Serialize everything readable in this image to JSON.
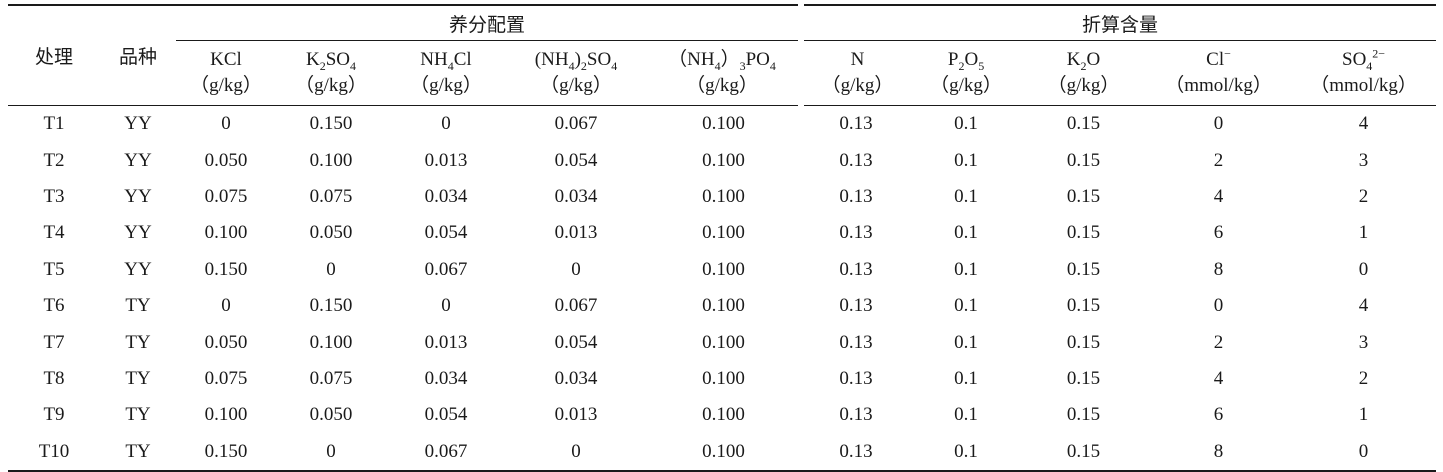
{
  "headers": {
    "treatment": "处理",
    "variety": "品种",
    "group_nutrient": "养分配置",
    "group_content": "折算含量"
  },
  "columns": {
    "kcl": {
      "main": "KCl",
      "unit": "（g/kg）"
    },
    "k2so4": {
      "pre": "K",
      "sub": "2",
      "post": "SO",
      "sub2": "4",
      "unit": "（g/kg）"
    },
    "nh4cl": {
      "pre": "NH",
      "sub": "4",
      "post": "Cl",
      "unit": "（g/kg）"
    },
    "nh42so4": {
      "pre": "(NH",
      "sub": "4",
      "mid": ")",
      "sub2": "2",
      "post": "SO",
      "sub3": "4",
      "unit": "（g/kg）"
    },
    "nh43po4": {
      "pre": "（NH",
      "sub": "4",
      "mid": "）",
      "sub2": "3",
      "post": "PO",
      "sub3": "4",
      "unit": "（g/kg）"
    },
    "n": {
      "main": "N",
      "unit": "（g/kg）"
    },
    "p2o5": {
      "pre": "P",
      "sub": "2",
      "post": "O",
      "sub2": "5",
      "unit": "（g/kg）"
    },
    "k2o": {
      "pre": "K",
      "sub": "2",
      "post": "O",
      "unit": "（g/kg）"
    },
    "cl": {
      "pre": "Cl",
      "sup": "−",
      "unit": "（mmol/kg）"
    },
    "so4": {
      "pre": "SO",
      "sub": "4",
      "sup": "2−",
      "unit": "（mmol/kg）"
    }
  },
  "rows": [
    {
      "t": "T1",
      "v": "YY",
      "c": [
        "0",
        "0.150",
        "0",
        "0.067",
        "0.100",
        "0.13",
        "0.1",
        "0.15",
        "0",
        "4"
      ]
    },
    {
      "t": "T2",
      "v": "YY",
      "c": [
        "0.050",
        "0.100",
        "0.013",
        "0.054",
        "0.100",
        "0.13",
        "0.1",
        "0.15",
        "2",
        "3"
      ]
    },
    {
      "t": "T3",
      "v": "YY",
      "c": [
        "0.075",
        "0.075",
        "0.034",
        "0.034",
        "0.100",
        "0.13",
        "0.1",
        "0.15",
        "4",
        "2"
      ]
    },
    {
      "t": "T4",
      "v": "YY",
      "c": [
        "0.100",
        "0.050",
        "0.054",
        "0.013",
        "0.100",
        "0.13",
        "0.1",
        "0.15",
        "6",
        "1"
      ]
    },
    {
      "t": "T5",
      "v": "YY",
      "c": [
        "0.150",
        "0",
        "0.067",
        "0",
        "0.100",
        "0.13",
        "0.1",
        "0.15",
        "8",
        "0"
      ]
    },
    {
      "t": "T6",
      "v": "TY",
      "c": [
        "0",
        "0.150",
        "0",
        "0.067",
        "0.100",
        "0.13",
        "0.1",
        "0.15",
        "0",
        "4"
      ]
    },
    {
      "t": "T7",
      "v": "TY",
      "c": [
        "0.050",
        "0.100",
        "0.013",
        "0.054",
        "0.100",
        "0.13",
        "0.1",
        "0.15",
        "2",
        "3"
      ]
    },
    {
      "t": "T8",
      "v": "TY",
      "c": [
        "0.075",
        "0.075",
        "0.034",
        "0.034",
        "0.100",
        "0.13",
        "0.1",
        "0.15",
        "4",
        "2"
      ]
    },
    {
      "t": "T9",
      "v": "TY",
      "c": [
        "0.100",
        "0.050",
        "0.054",
        "0.013",
        "0.100",
        "0.13",
        "0.1",
        "0.15",
        "6",
        "1"
      ]
    },
    {
      "t": "T10",
      "v": "TY",
      "c": [
        "0.150",
        "0",
        "0.067",
        "0",
        "0.100",
        "0.13",
        "0.1",
        "0.15",
        "8",
        "0"
      ]
    }
  ]
}
